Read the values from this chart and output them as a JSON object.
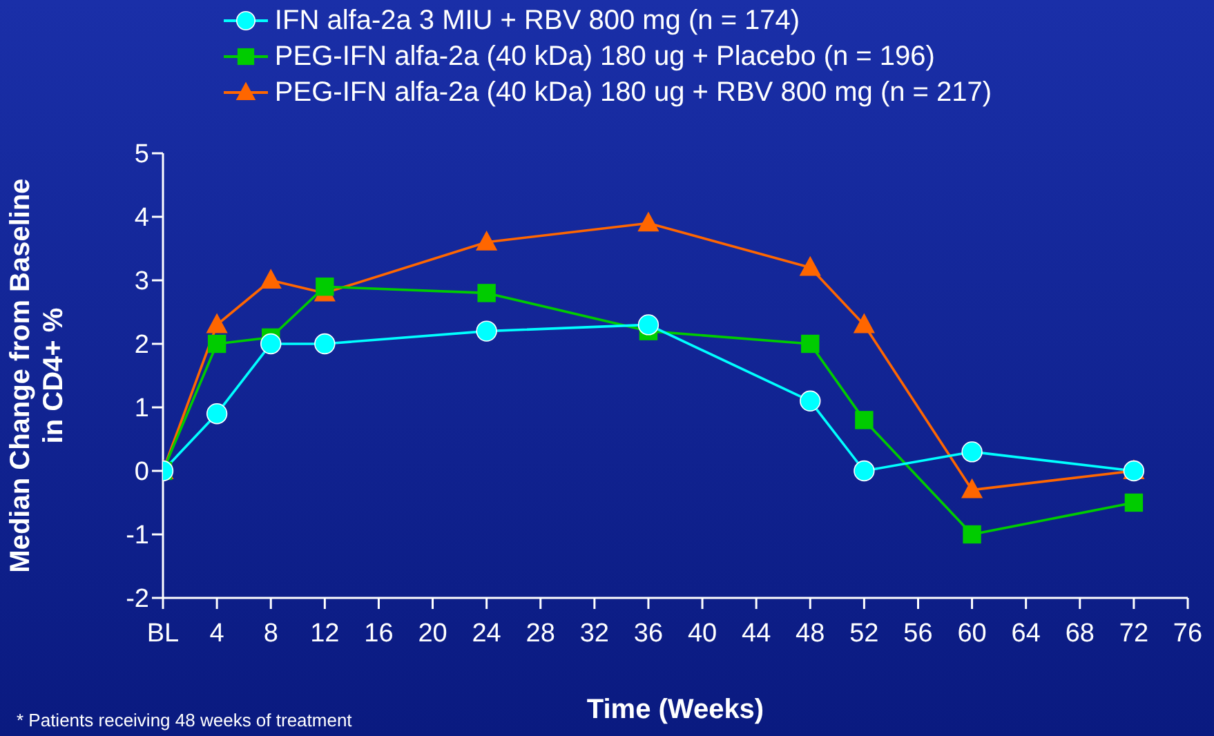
{
  "chart_data": {
    "type": "line",
    "xlabel": "Time (Weeks)",
    "ylabel": "Median Change from Baseline\nin CD4+ %",
    "x": [
      0,
      4,
      8,
      12,
      24,
      36,
      48,
      52,
      60,
      72
    ],
    "series": [
      {
        "name": "IFN alfa-2a 3 MIU + RBV 800 mg (n = 174)",
        "color": "#00ffff",
        "marker": "circle",
        "values": [
          0,
          0.9,
          2.0,
          2.0,
          2.2,
          2.3,
          1.1,
          0,
          0.3,
          0
        ]
      },
      {
        "name": "PEG-IFN alfa-2a (40 kDa) 180 ug + Placebo (n = 196)",
        "color": "#00cc00",
        "marker": "square",
        "values": [
          0,
          2.0,
          2.1,
          2.9,
          2.8,
          2.2,
          2.0,
          0.8,
          -1.0,
          -0.5
        ]
      },
      {
        "name": "PEG-IFN alfa-2a (40 kDa) 180 ug + RBV 800 mg (n = 217)",
        "color": "#ff6600",
        "marker": "triangle",
        "values": [
          0,
          2.3,
          3.0,
          2.8,
          3.6,
          3.9,
          3.2,
          2.3,
          -0.3,
          0
        ]
      }
    ],
    "xlim": [
      0,
      76
    ],
    "xticks": [
      {
        "value": 0,
        "label": "BL"
      },
      4,
      8,
      12,
      16,
      20,
      24,
      28,
      32,
      36,
      40,
      44,
      48,
      52,
      56,
      60,
      64,
      68,
      72,
      76
    ],
    "ylim": [
      -2,
      5
    ],
    "yticks": [
      -2,
      -1,
      0,
      1,
      2,
      3,
      4,
      5
    ],
    "grid": false,
    "legend": "top",
    "line_style": "solid",
    "annotations": [
      "* Patients receiving 48 weeks of treatment"
    ]
  }
}
